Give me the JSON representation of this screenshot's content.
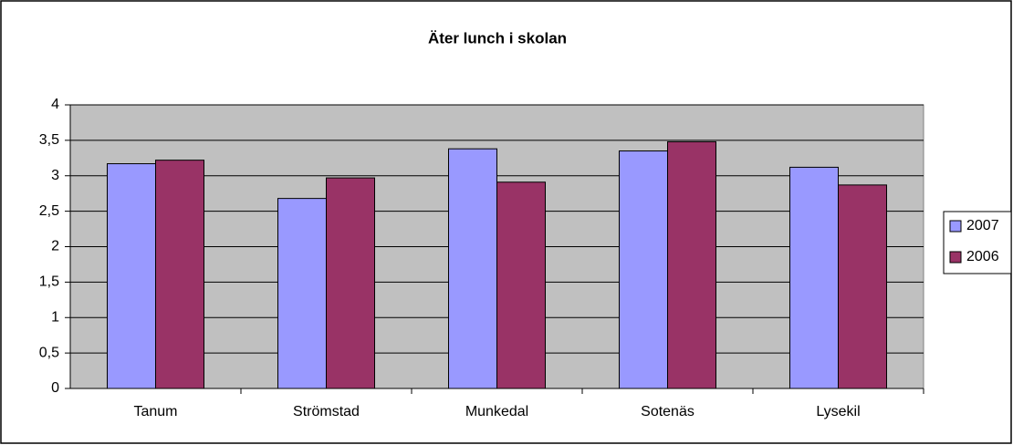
{
  "chart_data": {
    "type": "bar",
    "title": "Äter lunch i skolan",
    "categories": [
      "Tanum",
      "Strömstad",
      "Munkedal",
      "Sotenäs",
      "Lysekil"
    ],
    "series": [
      {
        "name": "2007",
        "color": "#9999ff",
        "values": [
          3.17,
          2.68,
          3.38,
          3.35,
          3.12
        ]
      },
      {
        "name": "2006",
        "color": "#993366",
        "values": [
          3.22,
          2.97,
          2.91,
          3.48,
          2.87
        ]
      }
    ],
    "ylim": [
      0,
      4
    ],
    "yticks": [
      0,
      {
        "value": 0.5,
        "label": "0,5"
      },
      1,
      {
        "value": 1.5,
        "label": "1,5"
      },
      2,
      {
        "value": 2.5,
        "label": "2,5"
      },
      3,
      {
        "value": 3.5,
        "label": "3,5"
      },
      4
    ],
    "grid": true,
    "legend": "right"
  }
}
